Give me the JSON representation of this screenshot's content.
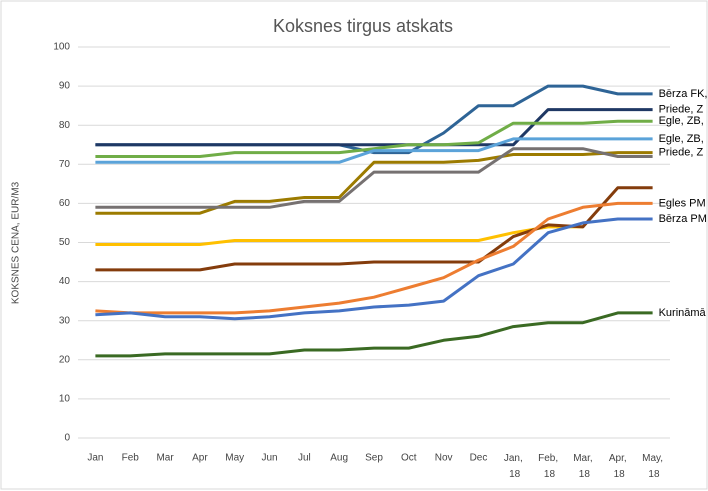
{
  "chart_data": {
    "type": "line",
    "title": "Koksnes tirgus atskats",
    "y_label": "KOKSNES CENA, EUR/M3",
    "categories": [
      "Jan",
      "Feb",
      "Mar",
      "Apr",
      "May",
      "Jun",
      "Jul",
      "Aug",
      "Sep",
      "Oct",
      "Nov",
      "Dec",
      "Jan, 18",
      "Feb, 18",
      "Mar, 18",
      "Apr, 18",
      "May, 18"
    ],
    "ylim": [
      0,
      100
    ],
    "yticks": [
      0,
      10,
      20,
      30,
      40,
      50,
      60,
      70,
      80,
      90,
      100
    ],
    "grid": true,
    "series": [
      {
        "name": "Bērza FK,",
        "color": "#2e6496",
        "values": [
          75,
          75,
          75,
          75,
          75,
          75,
          75,
          75,
          73,
          73,
          78,
          85,
          85,
          90,
          90,
          88,
          88
        ]
      },
      {
        "name": "Priede, Z",
        "color": "#1f3864",
        "values": [
          75,
          75,
          75,
          75,
          75,
          75,
          75,
          75,
          75,
          75,
          75,
          75,
          75,
          84,
          84,
          84,
          84
        ]
      },
      {
        "name": "Egle, ZB,",
        "color": "#70ad47",
        "values": [
          72,
          72,
          72,
          72,
          73,
          73,
          73,
          73,
          74,
          75,
          75,
          75.5,
          80.5,
          80.5,
          80.5,
          81,
          81
        ]
      },
      {
        "name": "Egle, ZB,",
        "color": "#5ba3d9",
        "values": [
          70.5,
          70.5,
          70.5,
          70.5,
          70.5,
          70.5,
          70.5,
          70.5,
          73.5,
          73.5,
          73.5,
          73.5,
          76.5,
          76.5,
          76.5,
          76.5,
          76.5
        ]
      },
      {
        "name": "Priede, Z",
        "color": "#9c7b00",
        "values": [
          57.5,
          57.5,
          57.5,
          57.5,
          60.5,
          60.5,
          61.5,
          61.5,
          70.5,
          70.5,
          70.5,
          71,
          72.5,
          72.5,
          72.5,
          73,
          73
        ]
      },
      {
        "color": "#767171",
        "values": [
          59,
          59,
          59,
          59,
          59,
          59,
          60.5,
          60.5,
          68,
          68,
          68,
          68,
          74,
          74,
          74,
          72,
          72
        ]
      },
      {
        "color": "#ffc000",
        "values": [
          49.5,
          49.5,
          49.5,
          49.5,
          50.5,
          50.5,
          50.5,
          50.5,
          50.5,
          50.5,
          50.5,
          50.5,
          52.5,
          54,
          54,
          null,
          null
        ]
      },
      {
        "color": "#843c0c",
        "values": [
          43,
          43,
          43,
          43,
          44.5,
          44.5,
          44.5,
          44.5,
          45,
          45,
          45,
          45,
          51.5,
          54.5,
          54,
          64,
          64
        ]
      },
      {
        "name": "Egles PM",
        "color": "#ed7d31",
        "values": [
          32.5,
          32,
          32,
          32,
          32,
          32.5,
          33.5,
          34.5,
          36,
          38.5,
          41,
          45.5,
          49,
          56,
          59,
          60,
          60
        ]
      },
      {
        "name": "Bērza PM",
        "color": "#4472c4",
        "values": [
          31.5,
          32,
          31,
          31,
          30.5,
          31,
          32,
          32.5,
          33.5,
          34,
          35,
          41.5,
          44.5,
          52.5,
          55,
          56,
          56
        ]
      },
      {
        "name": "Kurināmā",
        "color": "#3a6a23",
        "values": [
          21,
          21,
          21.5,
          21.5,
          21.5,
          21.5,
          22.5,
          22.5,
          23,
          23,
          25,
          26,
          28.5,
          29.5,
          29.5,
          32,
          32
        ]
      }
    ]
  }
}
